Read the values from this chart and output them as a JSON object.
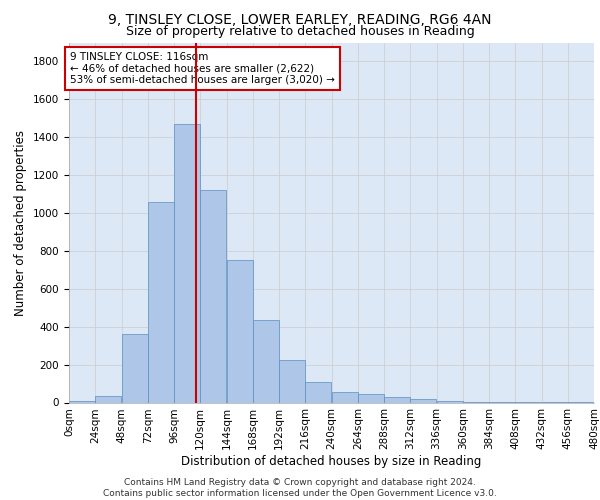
{
  "title_line1": "9, TINSLEY CLOSE, LOWER EARLEY, READING, RG6 4AN",
  "title_line2": "Size of property relative to detached houses in Reading",
  "xlabel": "Distribution of detached houses by size in Reading",
  "ylabel": "Number of detached properties",
  "footer_line1": "Contains HM Land Registry data © Crown copyright and database right 2024.",
  "footer_line2": "Contains public sector information licensed under the Open Government Licence v3.0.",
  "annotation_line1": "9 TINSLEY CLOSE: 116sqm",
  "annotation_line2": "← 46% of detached houses are smaller (2,622)",
  "annotation_line3": "53% of semi-detached houses are larger (3,020) →",
  "bar_values": [
    10,
    35,
    360,
    1060,
    1470,
    1120,
    750,
    435,
    225,
    110,
    55,
    45,
    30,
    20,
    10,
    5,
    5,
    5,
    5,
    5
  ],
  "bin_edges": [
    0,
    24,
    48,
    72,
    96,
    120,
    144,
    168,
    192,
    216,
    240,
    264,
    288,
    312,
    336,
    360,
    384,
    408,
    432,
    456,
    480
  ],
  "bar_color": "#aec6e8",
  "bar_edge_color": "#5a8fc0",
  "red_line_x": 116,
  "ylim": [
    0,
    1900
  ],
  "yticks": [
    0,
    200,
    400,
    600,
    800,
    1000,
    1200,
    1400,
    1600,
    1800
  ],
  "grid_color": "#cccccc",
  "background_color": "#dce8f5",
  "annotation_box_color": "#ffffff",
  "annotation_box_edge": "#cc0000",
  "red_line_color": "#cc0000",
  "title_fontsize": 10,
  "subtitle_fontsize": 9,
  "axis_label_fontsize": 8.5,
  "tick_fontsize": 7.5,
  "annotation_fontsize": 7.5,
  "footer_fontsize": 6.5
}
